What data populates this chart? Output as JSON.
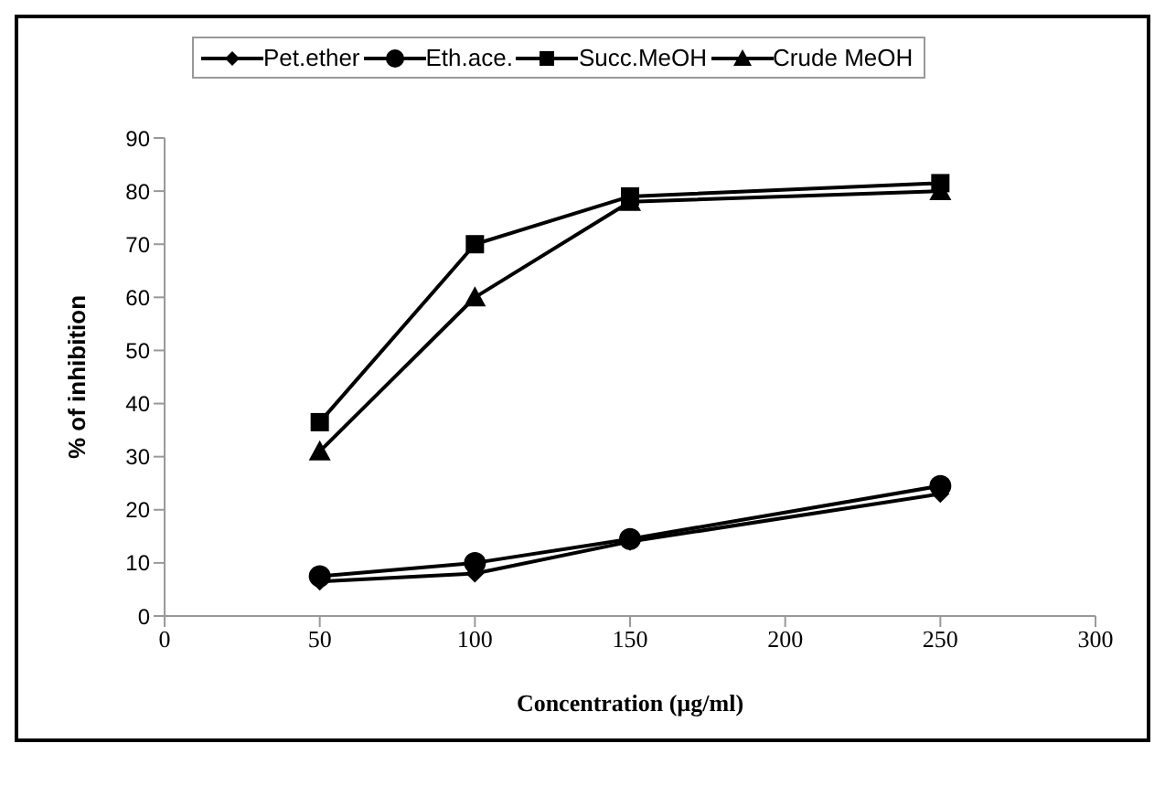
{
  "chart_data": {
    "type": "line",
    "xlabel": "Concentration (µg/ml)",
    "ylabel": "% of inhibition",
    "x": [
      50,
      100,
      150,
      250
    ],
    "xlim": [
      0,
      300
    ],
    "xticks": [
      0,
      50,
      100,
      150,
      200,
      250,
      300
    ],
    "ylim": [
      0,
      90
    ],
    "yticks": [
      0,
      10,
      20,
      30,
      40,
      50,
      60,
      70,
      80,
      90
    ],
    "grid": false,
    "legend": "top",
    "series": [
      {
        "name": "Pet.ether",
        "color": "#000000",
        "marker": "diamond",
        "values": [
          6.5,
          8,
          14,
          23
        ]
      },
      {
        "name": "Eth.ace.",
        "color": "#000000",
        "marker": "circle",
        "values": [
          7.5,
          10,
          14.5,
          24.5
        ]
      },
      {
        "name": "Succ.MeOH",
        "color": "#000000",
        "marker": "square",
        "values": [
          36.5,
          70,
          79,
          81.5
        ]
      },
      {
        "name": "Crude MeOH",
        "color": "#000000",
        "marker": "triangle",
        "values": [
          31,
          60,
          78,
          80
        ]
      }
    ]
  }
}
